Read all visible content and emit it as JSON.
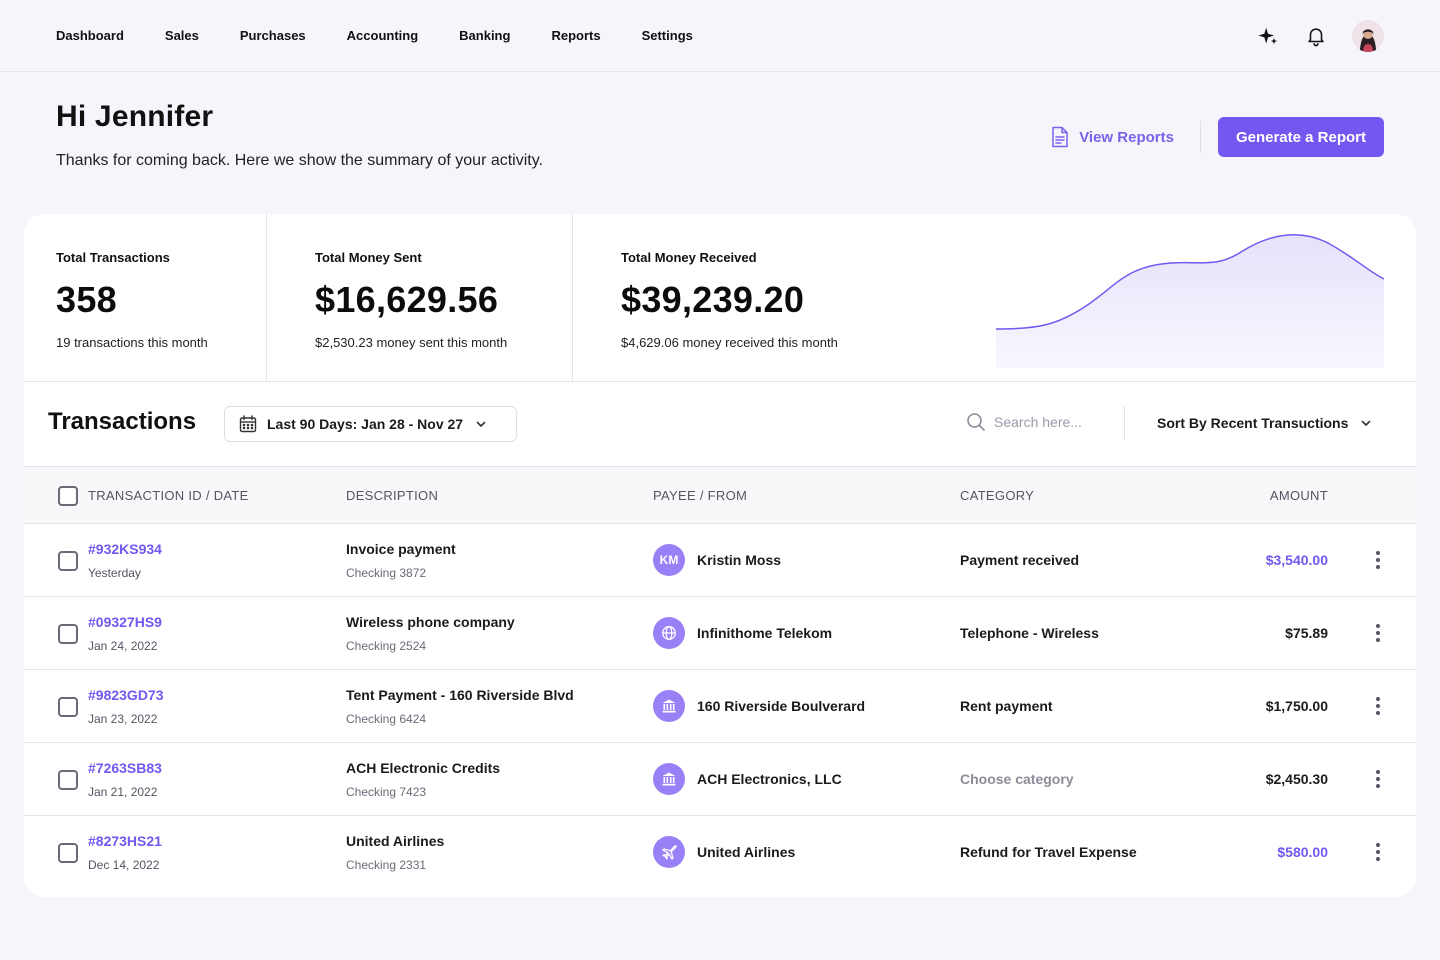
{
  "nav": {
    "items": [
      "Dashboard",
      "Sales",
      "Purchases",
      "Accounting",
      "Banking",
      "Reports",
      "Settings"
    ]
  },
  "hero": {
    "title": "Hi Jennifer",
    "subtitle": "Thanks for coming back. Here we show the summary of your activity.",
    "view_reports_label": "View Reports",
    "generate_label": "Generate a Report"
  },
  "stats": [
    {
      "label": "Total Transactions",
      "value": "358",
      "sub": "19 transactions this month"
    },
    {
      "label": "Total Money Sent",
      "value": "$16,629.56",
      "sub": "$2,530.23 money sent this month"
    },
    {
      "label": "Total Money Received",
      "value": "$39,239.20",
      "sub": "$4,629.06 money received this month"
    }
  ],
  "toolbar": {
    "title": "Transactions",
    "date_range": "Last 90 Days: Jan 28 - Nov 27",
    "search_placeholder": "Search here...",
    "sort_label": "Sort By Recent Transuctions"
  },
  "table": {
    "headers": [
      "TRANSACTION ID / DATE",
      "DESCRIPTION",
      "PAYEE / FROM",
      "CATEGORY",
      "AMOUNT"
    ],
    "rows": [
      {
        "id": "#932KS934",
        "date": "Yesterday",
        "desc": "Invoice payment",
        "account": "Checking 3872",
        "payee": "Kristin Moss",
        "payee_icon": "KM",
        "payee_icon_name": "initials-avatar",
        "category": "Payment received",
        "amount": "$3,540.00",
        "amount_color": "#7357f0"
      },
      {
        "id": "#09327HS9",
        "date": "Jan 24, 2022",
        "desc": "Wireless phone company",
        "account": "Checking 2524",
        "payee": "Infinithome Telekom",
        "payee_icon": "",
        "payee_icon_name": "globe-icon",
        "category": "Telephone - Wireless",
        "amount": "$75.89",
        "amount_color": "#1b1b1b"
      },
      {
        "id": "#9823GD73",
        "date": "Jan 23, 2022",
        "desc": "Tent Payment - 160 Riverside Blvd",
        "account": "Checking 6424",
        "payee": "160 Riverside Boulverard",
        "payee_icon": "",
        "payee_icon_name": "bank-icon",
        "category": "Rent payment",
        "amount": "$1,750.00",
        "amount_color": "#1b1b1b"
      },
      {
        "id": "#7263SB83",
        "date": "Jan 21, 2022",
        "desc": "ACH Electronic Credits",
        "account": "Checking 7423",
        "payee": "ACH Electronics, LLC",
        "payee_icon": "",
        "payee_icon_name": "bank-icon",
        "category": "Choose category",
        "amount": "$2,450.30",
        "amount_color": "#1b1b1b"
      },
      {
        "id": "#8273HS21",
        "date": "Dec 14, 2022",
        "desc": "United Airlines",
        "account": "Checking 2331",
        "payee": "United Airlines",
        "payee_icon": "",
        "payee_icon_name": "airplane-icon",
        "category": "Refund for Travel Expense",
        "amount": "$580.00",
        "amount_color": "#7357f0"
      }
    ]
  },
  "colors": {
    "accent": "#7357f0",
    "payee_icon_bg": "#9a80f6",
    "page_bg": "#f6f5fc"
  }
}
